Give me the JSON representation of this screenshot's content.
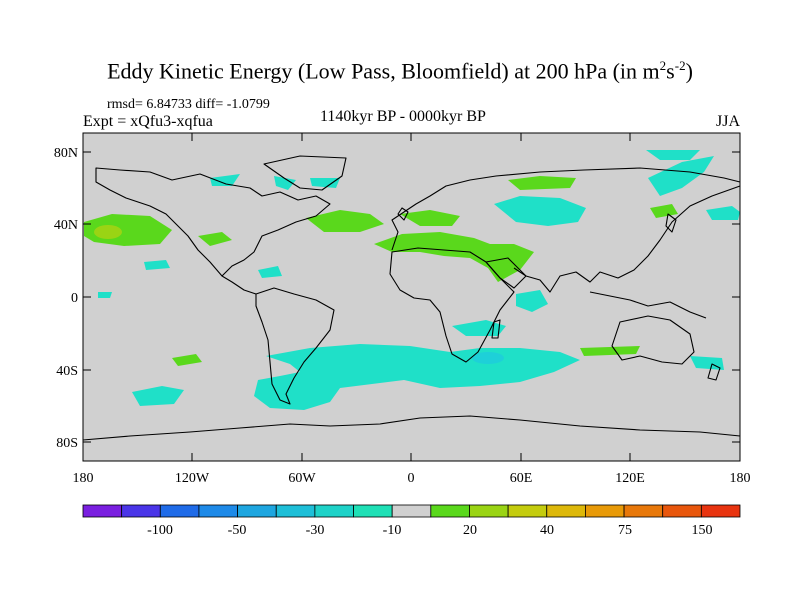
{
  "title": {
    "main": "Eddy Kinetic Energy (Low Pass, Bloomfield) at 200 hPa (in m",
    "sup1": "2",
    "mid": "s",
    "sup2": "-2",
    "end": ")"
  },
  "stats": "rmsd= 6.84733 diff= -1.0799",
  "experiment": "Expt = xQfu3-xqfua",
  "period": "1140kyr BP - 0000kyr BP",
  "season": "JJA",
  "lat_ticks": [
    "80N",
    "40N",
    "0",
    "40S",
    "80S"
  ],
  "lon_ticks": [
    "180",
    "120W",
    "60W",
    "0",
    "60E",
    "120E",
    "180"
  ],
  "colorbar": {
    "colors": [
      "#7a1fe0",
      "#4a35e8",
      "#1f6be8",
      "#1e8ae8",
      "#1ea6e0",
      "#1ebfd8",
      "#1ed2c8",
      "#1fe0b6",
      "#d0d0d0",
      "#5ad81c",
      "#9ad414",
      "#c4cc0e",
      "#ddb80a",
      "#e89a08",
      "#e8780a",
      "#e8560c",
      "#e83410"
    ],
    "labels": [
      "-100",
      "-50",
      "-30",
      "-10",
      "20",
      "40",
      "75",
      "150"
    ]
  },
  "map_colors": {
    "background": "#d0d0d0",
    "cyan": "#1fe0c8",
    "cyan_dark": "#1ed0d8",
    "green": "#5ad81c",
    "lime": "#9ad414",
    "coast": "#000000"
  }
}
